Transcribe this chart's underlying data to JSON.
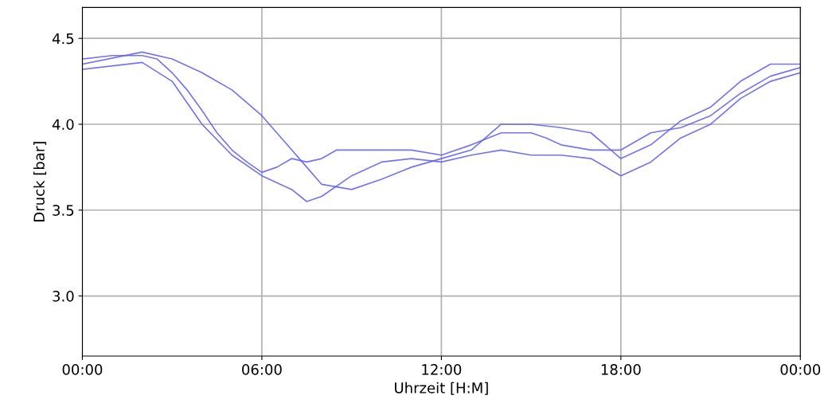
{
  "chart_data": {
    "type": "line",
    "xlabel": "Uhrzeit [H:M]",
    "ylabel": "Druck [bar]",
    "xlim": [
      0,
      24
    ],
    "xticks": [
      {
        "value": 0,
        "label": "00:00"
      },
      {
        "value": 6,
        "label": "06:00"
      },
      {
        "value": 12,
        "label": "12:00"
      },
      {
        "value": 18,
        "label": "18:00"
      },
      {
        "value": 24,
        "label": "00:00"
      }
    ],
    "ylim": [
      2.65,
      4.68
    ],
    "yticks": [
      {
        "value": 3.0,
        "label": "3.0"
      },
      {
        "value": 3.5,
        "label": "3.5"
      },
      {
        "value": 4.0,
        "label": "4.0"
      },
      {
        "value": 4.5,
        "label": "4.5"
      }
    ],
    "grid": true,
    "series": [
      {
        "color": "#5c5cf0",
        "x": [
          0,
          1,
          2,
          2.5,
          3,
          3.5,
          4,
          4.5,
          5,
          5.5,
          6,
          6.5,
          7,
          7.5,
          8,
          8.5,
          9,
          10,
          11,
          12,
          13,
          14,
          15,
          15.5,
          16,
          17,
          18,
          19,
          20,
          21,
          22,
          23,
          24
        ],
        "values": [
          4.38,
          4.4,
          4.4,
          4.38,
          4.3,
          4.2,
          4.08,
          3.95,
          3.85,
          3.78,
          3.72,
          3.75,
          3.8,
          3.78,
          3.8,
          3.85,
          3.85,
          3.85,
          3.85,
          3.82,
          3.88,
          3.95,
          3.95,
          3.92,
          3.88,
          3.85,
          3.85,
          3.95,
          3.98,
          4.05,
          4.18,
          4.28,
          4.33
        ]
      },
      {
        "color": "#5c5cf0",
        "x": [
          0,
          2,
          3,
          4,
          5,
          6,
          6.5,
          7,
          7.5,
          8,
          9,
          10,
          11,
          12,
          13,
          14,
          15,
          16,
          17,
          18,
          19,
          20,
          21,
          22,
          23,
          24
        ],
        "values": [
          4.35,
          4.42,
          4.38,
          4.3,
          4.2,
          4.05,
          3.95,
          3.85,
          3.75,
          3.65,
          3.62,
          3.68,
          3.75,
          3.8,
          3.85,
          4.0,
          4.0,
          3.98,
          3.95,
          3.8,
          3.88,
          4.02,
          4.1,
          4.25,
          4.35,
          4.35
        ]
      },
      {
        "color": "#5c5cf0",
        "x": [
          0,
          2,
          3,
          4,
          5,
          6,
          7,
          7.5,
          8,
          9,
          10,
          11,
          12,
          13,
          14,
          15,
          16,
          17,
          18,
          19,
          20,
          21,
          22,
          23,
          24
        ],
        "values": [
          4.32,
          4.36,
          4.25,
          4.0,
          3.82,
          3.7,
          3.62,
          3.55,
          3.58,
          3.7,
          3.78,
          3.8,
          3.78,
          3.82,
          3.85,
          3.82,
          3.82,
          3.8,
          3.7,
          3.78,
          3.92,
          4.0,
          4.15,
          4.25,
          4.3
        ]
      }
    ]
  }
}
